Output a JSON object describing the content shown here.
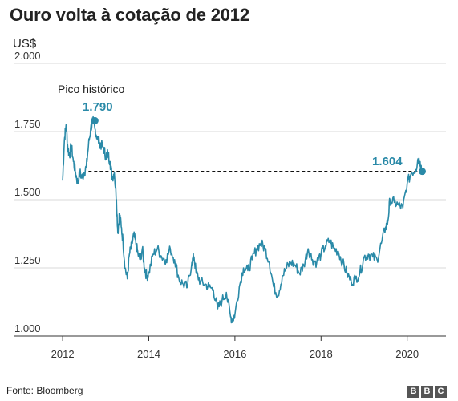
{
  "title": "Ouro volta à cotação de 2012",
  "unit_label": "US$",
  "source": "Fonte: Bloomberg",
  "logo": [
    "B",
    "B",
    "C"
  ],
  "chart_data": {
    "type": "line",
    "title": "Ouro volta à cotação de 2012",
    "ylabel": "US$",
    "xlabel": "",
    "ylim": [
      1000,
      2000
    ],
    "xlim": [
      2011.7,
      2020.9
    ],
    "yticks": [
      1000,
      1250,
      1500,
      1750,
      2000
    ],
    "ytick_labels": [
      "1.000",
      "1.250",
      "1.500",
      "1.750",
      "2.000"
    ],
    "xticks": [
      2012,
      2014,
      2016,
      2018,
      2020
    ],
    "xtick_labels": [
      "2012",
      "2014",
      "2016",
      "2018",
      "2020"
    ],
    "grid": true,
    "line_color": "#2a8aa8",
    "series": [
      {
        "x": [
          2012.0,
          2012.04,
          2012.08,
          2012.12,
          2012.16,
          2012.2,
          2012.25,
          2012.3,
          2012.35,
          2012.4,
          2012.45,
          2012.5,
          2012.55,
          2012.6,
          2012.65,
          2012.7,
          2012.75,
          2012.8,
          2012.85,
          2012.9,
          2012.95,
          2013.0,
          2013.05,
          2013.1,
          2013.15,
          2013.2,
          2013.25,
          2013.28,
          2013.32,
          2013.36,
          2013.4,
          2013.45,
          2013.5,
          2013.55,
          2013.6,
          2013.65,
          2013.7,
          2013.75,
          2013.8,
          2013.85,
          2013.9,
          2013.95,
          2014.0,
          2014.1,
          2014.2,
          2014.3,
          2014.4,
          2014.5,
          2014.6,
          2014.7,
          2014.8,
          2014.9,
          2015.0,
          2015.05,
          2015.1,
          2015.2,
          2015.3,
          2015.4,
          2015.5,
          2015.6,
          2015.7,
          2015.8,
          2015.9,
          2015.95,
          2016.0,
          2016.1,
          2016.2,
          2016.3,
          2016.4,
          2016.5,
          2016.6,
          2016.7,
          2016.8,
          2016.9,
          2017.0,
          2017.1,
          2017.2,
          2017.3,
          2017.4,
          2017.5,
          2017.6,
          2017.7,
          2017.8,
          2017.9,
          2018.0,
          2018.1,
          2018.2,
          2018.3,
          2018.4,
          2018.5,
          2018.6,
          2018.7,
          2018.8,
          2018.9,
          2019.0,
          2019.1,
          2019.2,
          2019.3,
          2019.4,
          2019.5,
          2019.55,
          2019.6,
          2019.7,
          2019.8,
          2019.9,
          2020.0,
          2020.1,
          2020.2,
          2020.25,
          2020.3,
          2020.35
        ],
        "values": [
          1570,
          1720,
          1775,
          1690,
          1660,
          1700,
          1640,
          1600,
          1560,
          1600,
          1580,
          1600,
          1620,
          1700,
          1760,
          1790,
          1760,
          1730,
          1710,
          1700,
          1690,
          1660,
          1670,
          1640,
          1580,
          1600,
          1500,
          1380,
          1450,
          1400,
          1350,
          1250,
          1210,
          1300,
          1330,
          1370,
          1340,
          1300,
          1280,
          1320,
          1250,
          1220,
          1230,
          1300,
          1320,
          1290,
          1280,
          1320,
          1280,
          1210,
          1190,
          1180,
          1270,
          1290,
          1230,
          1200,
          1190,
          1180,
          1170,
          1100,
          1130,
          1160,
          1070,
          1060,
          1080,
          1180,
          1250,
          1240,
          1280,
          1320,
          1340,
          1320,
          1270,
          1180,
          1150,
          1220,
          1250,
          1270,
          1260,
          1230,
          1260,
          1320,
          1280,
          1270,
          1300,
          1330,
          1350,
          1320,
          1310,
          1270,
          1230,
          1200,
          1210,
          1230,
          1290,
          1300,
          1290,
          1280,
          1340,
          1400,
          1420,
          1500,
          1490,
          1480,
          1470,
          1560,
          1600,
          1610,
          1650,
          1640,
          1604
        ]
      }
    ],
    "annotations": [
      {
        "text": "Pico histórico",
        "x": 2012.75,
        "y": 1790
      },
      {
        "text": "1.790",
        "x": 2012.75,
        "y": 1790
      },
      {
        "text": "1.604",
        "x": 2020.35,
        "y": 1604
      }
    ],
    "reference_line": {
      "from_x": 2012.6,
      "to_x": 2020.35,
      "y": 1604,
      "style": "dashed"
    }
  }
}
